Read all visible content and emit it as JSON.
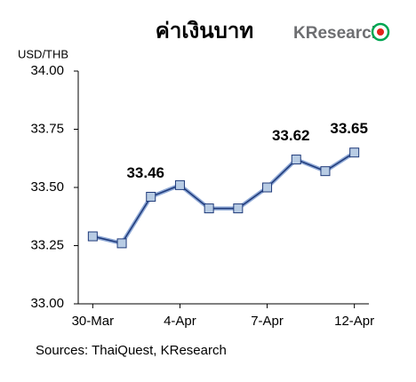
{
  "chart_data": {
    "type": "line",
    "title": "ค่าเงินบาท",
    "logo": "KResearch",
    "y_axis_label": "USD/THB",
    "source": "Sources: ThaiQuest, KResearch",
    "categories": [
      "30-Mar",
      null,
      null,
      "4-Apr",
      null,
      null,
      "7-Apr",
      null,
      null,
      "12-Apr"
    ],
    "series": [
      {
        "name": "USD/THB",
        "color": "#1f3a7a",
        "marker_color": "#b8cce4",
        "values": [
          33.29,
          33.26,
          33.46,
          33.51,
          33.41,
          33.41,
          33.5,
          33.62,
          33.57,
          33.65
        ],
        "value_labels": [
          null,
          null,
          "33.46",
          null,
          null,
          null,
          null,
          "33.62",
          null,
          "33.65"
        ]
      }
    ],
    "ylim": [
      33,
      34
    ],
    "yticks": [
      {
        "value": 33,
        "label": "33.00"
      },
      33.25,
      {
        "value": 33.5,
        "label": "33.50"
      },
      33.75,
      {
        "value": 34,
        "label": "34.00"
      }
    ]
  }
}
